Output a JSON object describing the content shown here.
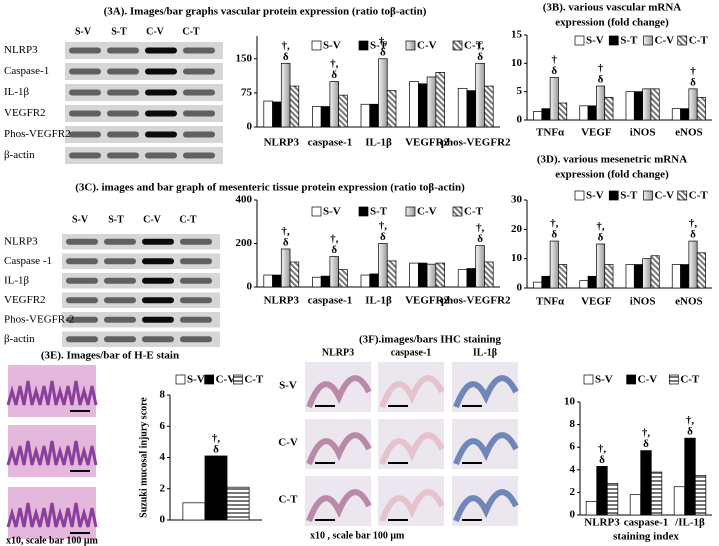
{
  "blots": [
    {
      "lanes": [
        "S-V",
        "S-T",
        "C-V",
        "C-T"
      ],
      "rows": [
        "NLRP3",
        "Caspase-1",
        "IL-1β",
        "VEGFR2",
        "Phos-VEGFR2",
        "β-actin"
      ]
    },
    {
      "lanes": [
        "S-V",
        "S-T",
        "C-V",
        "C-T"
      ],
      "rows": [
        "NLRP3",
        "Caspase -1",
        "IL-1β",
        "VEGFR2",
        "Phos-VEGFR-2",
        "β-actin"
      ]
    }
  ],
  "he": {
    "caption": "x10, scale bar 100 μm"
  },
  "ihc": {
    "columns": [
      "NLRP3",
      "caspase-1",
      "IL-1β"
    ],
    "rows": [
      "S-V",
      "C-V",
      "C-T"
    ],
    "caption": "x10 , scale bar 100 μm"
  },
  "chart_data": [
    {
      "type": "bar",
      "title": [
        "(3A). Images/bar graphs vascular protein  expression (ratio toβ-actin)"
      ],
      "categories": [
        "NLRP3",
        "caspase-1",
        "IL-1β",
        "VEGFR2",
        "phos-VEGFR2"
      ],
      "series": [
        {
          "name": "S-V",
          "color": "#ffffff",
          "pattern": "solid",
          "values": [
            57,
            45,
            50,
            100,
            85
          ]
        },
        {
          "name": "S-T",
          "color": "#000000",
          "pattern": "solid",
          "values": [
            55,
            45,
            50,
            95,
            80
          ]
        },
        {
          "name": "C-V",
          "color": "#999999",
          "pattern": "gradient",
          "values": [
            140,
            100,
            150,
            110,
            140
          ]
        },
        {
          "name": "C-T",
          "color": "#777777",
          "pattern": "hatch",
          "values": [
            90,
            70,
            80,
            120,
            90
          ]
        }
      ],
      "annotations": [
        [
          "†,",
          "δ"
        ],
        [
          "†,",
          "δ"
        ],
        [
          "†,",
          "δ"
        ],
        null,
        [
          "†,",
          "δ"
        ]
      ],
      "ylim": [
        0,
        200
      ],
      "yticks": [
        0,
        75,
        150
      ]
    },
    {
      "type": "bar",
      "title": [
        "(3B). various  vascular mRNA",
        "expression (fold change)"
      ],
      "categories": [
        "TNFα",
        "VEGF",
        "iNOS",
        "eNOS"
      ],
      "series": [
        {
          "name": "S-V",
          "color": "#ffffff",
          "pattern": "solid",
          "values": [
            1.5,
            2.5,
            5,
            2
          ]
        },
        {
          "name": "S-T",
          "color": "#000000",
          "pattern": "solid",
          "values": [
            2,
            2.5,
            5,
            2
          ]
        },
        {
          "name": "C-V",
          "color": "#999999",
          "pattern": "gradient",
          "values": [
            7.5,
            6,
            5.5,
            5.5
          ]
        },
        {
          "name": "C-T",
          "color": "#777777",
          "pattern": "hatch",
          "values": [
            3,
            4,
            5.5,
            4
          ]
        }
      ],
      "annotations": [
        [
          "†",
          "δ"
        ],
        [
          "†",
          "δ"
        ],
        null,
        [
          "†",
          "δ"
        ]
      ],
      "ylim": [
        0,
        15
      ],
      "yticks": [
        0,
        5,
        10,
        15
      ]
    },
    {
      "type": "bar",
      "title": [
        "(3C).  images and bar graph of mesenteric tissue protein  expression (ratio toβ-actin)"
      ],
      "categories": [
        "NLRP3",
        "caspase-1",
        "IL-1β",
        "VEGFR2",
        "phos-VEGFR2"
      ],
      "series": [
        {
          "name": "S-V",
          "color": "#ffffff",
          "pattern": "solid",
          "values": [
            55,
            45,
            55,
            110,
            80
          ]
        },
        {
          "name": "S-T",
          "color": "#000000",
          "pattern": "solid",
          "values": [
            55,
            50,
            60,
            110,
            85
          ]
        },
        {
          "name": "C-V",
          "color": "#999999",
          "pattern": "gradient",
          "values": [
            175,
            140,
            200,
            105,
            190
          ]
        },
        {
          "name": "C-T",
          "color": "#777777",
          "pattern": "hatch",
          "values": [
            115,
            80,
            120,
            110,
            115
          ]
        }
      ],
      "annotations": [
        [
          "†,",
          "δ"
        ],
        [
          "†,",
          "δ"
        ],
        [
          "†,",
          "δ"
        ],
        null,
        [
          "†,",
          "δ"
        ]
      ],
      "ylim": [
        0,
        400
      ],
      "yticks": [
        0,
        200,
        400
      ]
    },
    {
      "type": "bar",
      "title": [
        "(3D). various  mesenetric mRNA",
        "expression (fold change)"
      ],
      "categories": [
        "TNFα",
        "VEGF",
        "iNOS",
        "eNOS"
      ],
      "series": [
        {
          "name": "S-V",
          "color": "#ffffff",
          "pattern": "solid",
          "values": [
            2,
            2.5,
            8,
            8
          ]
        },
        {
          "name": "S-T",
          "color": "#000000",
          "pattern": "solid",
          "values": [
            4,
            4,
            8,
            8
          ]
        },
        {
          "name": "C-V",
          "color": "#999999",
          "pattern": "gradient",
          "values": [
            16,
            15,
            10,
            16
          ]
        },
        {
          "name": "C-T",
          "color": "#777777",
          "pattern": "hatch",
          "values": [
            8,
            8,
            11,
            12
          ]
        }
      ],
      "annotations": [
        [
          "†,",
          "δ"
        ],
        [
          "†,",
          "δ"
        ],
        null,
        [
          "†,",
          "δ"
        ]
      ],
      "ylim": [
        0,
        30
      ],
      "yticks": [
        0,
        10,
        20,
        30
      ]
    },
    {
      "type": "bar",
      "title": [
        "(3E). Images/bar of H-E stain"
      ],
      "y_label": "Suzuki mucosal injury score",
      "categories": [
        null
      ],
      "series": [
        {
          "name": "S-V",
          "color": "#ffffff",
          "pattern": "solid",
          "values": [
            1.1
          ]
        },
        {
          "name": "C-V",
          "color": "#000000",
          "pattern": "solid",
          "values": [
            4.1
          ]
        },
        {
          "name": "C-T",
          "color": "#777777",
          "pattern": "stripes",
          "values": [
            2.1
          ]
        }
      ],
      "annotations": [
        [
          "†,",
          "δ"
        ]
      ],
      "ylim": [
        0,
        8
      ],
      "yticks": [
        0,
        2,
        4,
        6,
        8
      ]
    },
    {
      "type": "bar",
      "title": [
        "(3F).images/bars IHC staining"
      ],
      "x_label": "staining index",
      "categories": [
        "NLRP3",
        "caspase-1",
        "/IL-1β"
      ],
      "series": [
        {
          "name": "S-V",
          "color": "#ffffff",
          "pattern": "solid",
          "values": [
            1.2,
            1.8,
            2.5
          ]
        },
        {
          "name": "C-V",
          "color": "#000000",
          "pattern": "solid",
          "values": [
            4.3,
            5.7,
            6.8
          ]
        },
        {
          "name": "C-T",
          "color": "#777777",
          "pattern": "stripes",
          "values": [
            2.8,
            3.8,
            3.5
          ]
        }
      ],
      "annotations": [
        [
          "†,",
          "δ"
        ],
        [
          "†,",
          "δ"
        ],
        [
          "†,",
          "δ"
        ]
      ],
      "ylim": [
        0,
        10
      ],
      "yticks": [
        0,
        2,
        4,
        6,
        8,
        10
      ]
    }
  ]
}
